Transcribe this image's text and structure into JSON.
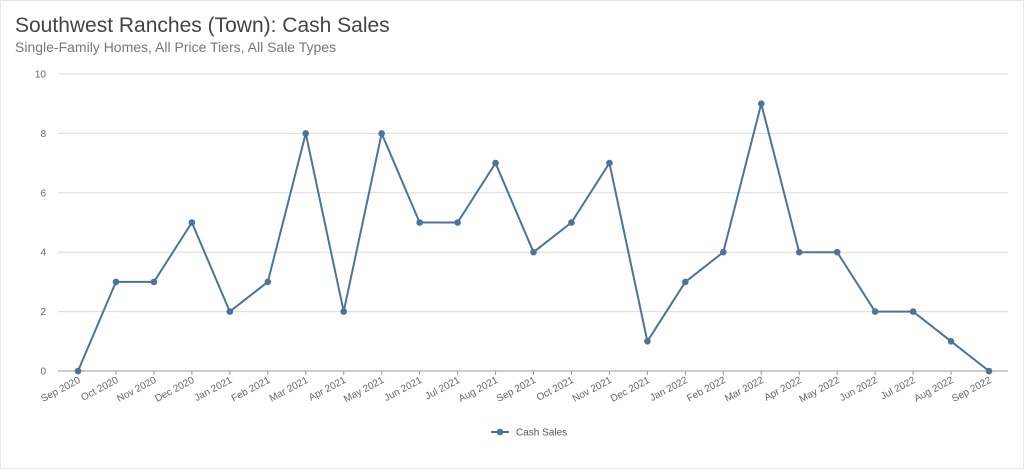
{
  "header": {
    "title": "Southwest Ranches (Town): Cash Sales",
    "subtitle": "Single-Family Homes, All Price Tiers, All Sale Types"
  },
  "chart_data": {
    "type": "line",
    "title": "Southwest Ranches (Town): Cash Sales",
    "subtitle": "Single-Family Homes, All Price Tiers, All Sale Types",
    "xlabel": "",
    "ylabel": "",
    "ylim": [
      0,
      10
    ],
    "yticks": [
      0,
      2,
      4,
      6,
      8,
      10
    ],
    "grid": true,
    "legend_position": "bottom-center",
    "categories": [
      "Sep 2020",
      "Oct 2020",
      "Nov 2020",
      "Dec 2020",
      "Jan 2021",
      "Feb 2021",
      "Mar 2021",
      "Apr 2021",
      "May 2021",
      "Jun 2021",
      "Jul 2021",
      "Aug 2021",
      "Sep 2021",
      "Oct 2021",
      "Nov 2021",
      "Dec 2021",
      "Jan 2022",
      "Feb 2022",
      "Mar 2022",
      "Apr 2022",
      "May 2022",
      "Jun 2022",
      "Jul 2022",
      "Aug 2022",
      "Sep 2022"
    ],
    "series": [
      {
        "name": "Cash Sales",
        "color": "#4e7396",
        "values": [
          0,
          3,
          3,
          5,
          2,
          3,
          8,
          2,
          8,
          5,
          5,
          7,
          4,
          5,
          7,
          1,
          3,
          4,
          9,
          4,
          4,
          2,
          2,
          1,
          0
        ]
      }
    ]
  }
}
